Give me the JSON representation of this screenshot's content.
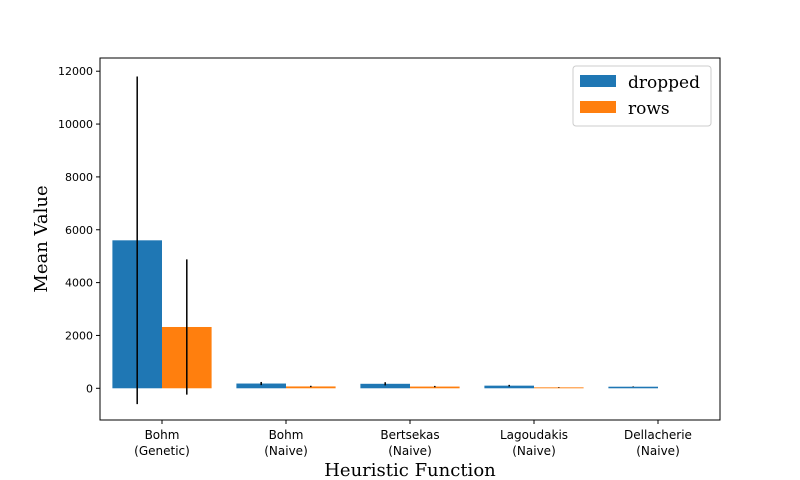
{
  "chart_data": {
    "type": "bar",
    "xlabel": "Heuristic Function",
    "ylabel": "Mean Value",
    "categories": [
      [
        "Bohm",
        "(Genetic)"
      ],
      [
        "Bohm",
        "(Naive)"
      ],
      [
        "Bertsekas",
        "(Naive)"
      ],
      [
        "Lagoudakis",
        "(Naive)"
      ],
      [
        "Dellacherie",
        "(Naive)"
      ]
    ],
    "series": [
      {
        "name": "dropped",
        "color": "#1f77b4",
        "values": [
          5600,
          180,
          170,
          100,
          60
        ],
        "errors": [
          6200,
          60,
          60,
          30,
          10
        ]
      },
      {
        "name": "rows",
        "color": "#ff7f0e",
        "values": [
          2320,
          70,
          65,
          35,
          0
        ],
        "errors": [
          2560,
          25,
          25,
          10,
          0
        ]
      }
    ],
    "ylim": [
      -1200,
      12500
    ],
    "yticks": [
      0,
      2000,
      4000,
      6000,
      8000,
      10000,
      12000
    ],
    "grid": false,
    "legend_position": "upper-right"
  }
}
